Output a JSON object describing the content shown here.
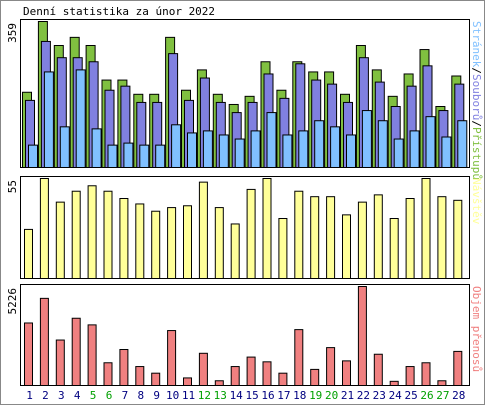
{
  "chart_data": [
    {
      "type": "bar",
      "title": "Denní statistika za únor 2022",
      "y_axis_label": "359",
      "side_label": {
        "parts": [
          "Stránek",
          "/",
          "Souborů",
          "/",
          "Přístupů"
        ]
      },
      "categories": [
        "1",
        "2",
        "3",
        "4",
        "5",
        "6",
        "7",
        "8",
        "9",
        "10",
        "11",
        "12",
        "13",
        "14",
        "15",
        "16",
        "17",
        "18",
        "19",
        "20",
        "21",
        "22",
        "23",
        "24",
        "25",
        "26",
        "27",
        "28"
      ],
      "weekend_days": [
        "5",
        "6",
        "12",
        "13",
        "19",
        "20",
        "26",
        "27"
      ],
      "ylim": [
        0,
        359
      ],
      "series": [
        {
          "name": "Přístupů",
          "color": "#80c040",
          "values": [
            185,
            359,
            300,
            320,
            300,
            215,
            215,
            180,
            180,
            320,
            190,
            240,
            180,
            155,
            175,
            260,
            190,
            260,
            235,
            235,
            180,
            300,
            240,
            175,
            230,
            290,
            150,
            225
          ]
        },
        {
          "name": "Souborů",
          "color": "#8080e0",
          "values": [
            165,
            310,
            270,
            270,
            260,
            190,
            200,
            160,
            160,
            280,
            165,
            220,
            160,
            135,
            160,
            230,
            170,
            255,
            215,
            205,
            160,
            270,
            210,
            150,
            200,
            250,
            140,
            205
          ]
        },
        {
          "name": "Stránek",
          "color": "#80c0ff",
          "values": [
            55,
            235,
            100,
            240,
            95,
            55,
            60,
            55,
            55,
            105,
            85,
            90,
            80,
            70,
            90,
            135,
            80,
            90,
            115,
            100,
            80,
            140,
            115,
            70,
            90,
            125,
            75,
            115
          ]
        }
      ]
    },
    {
      "type": "bar",
      "y_axis_label": "55",
      "side_label": {
        "parts": [
          "Návštěv"
        ]
      },
      "categories": [
        "1",
        "2",
        "3",
        "4",
        "5",
        "6",
        "7",
        "8",
        "9",
        "10",
        "11",
        "12",
        "13",
        "14",
        "15",
        "16",
        "17",
        "18",
        "19",
        "20",
        "21",
        "22",
        "23",
        "24",
        "25",
        "26",
        "27",
        "28"
      ],
      "ylim": [
        0,
        55
      ],
      "series": [
        {
          "name": "Návštěv",
          "color": "#ffff99",
          "values": [
            27,
            55,
            42,
            48,
            51,
            48,
            44,
            41,
            37,
            39,
            40,
            53,
            39,
            30,
            49,
            55,
            33,
            48,
            45,
            45,
            35,
            42,
            46,
            33,
            44,
            55,
            45,
            43
          ]
        }
      ]
    },
    {
      "type": "bar",
      "y_axis_label": "5226",
      "side_label": {
        "parts": [
          "Objem přenosů"
        ]
      },
      "categories": [
        "1",
        "2",
        "3",
        "4",
        "5",
        "6",
        "7",
        "8",
        "9",
        "10",
        "11",
        "12",
        "13",
        "14",
        "15",
        "16",
        "17",
        "18",
        "19",
        "20",
        "21",
        "22",
        "23",
        "24",
        "25",
        "26",
        "27",
        "28"
      ],
      "ylim": [
        0,
        5226
      ],
      "series": [
        {
          "name": "Objem přenosů",
          "color": "#f08080",
          "values": [
            3300,
            4600,
            2400,
            3550,
            3200,
            1200,
            1900,
            1000,
            650,
            2900,
            400,
            1700,
            250,
            1000,
            1500,
            1250,
            650,
            2950,
            850,
            2000,
            1300,
            5226,
            1650,
            220,
            1000,
            1200,
            250,
            1800
          ]
        }
      ]
    }
  ],
  "colors": {
    "weekday_label": "#000080",
    "weekend_label": "#00a000",
    "frame": "#000000",
    "background": "#ffffff"
  }
}
